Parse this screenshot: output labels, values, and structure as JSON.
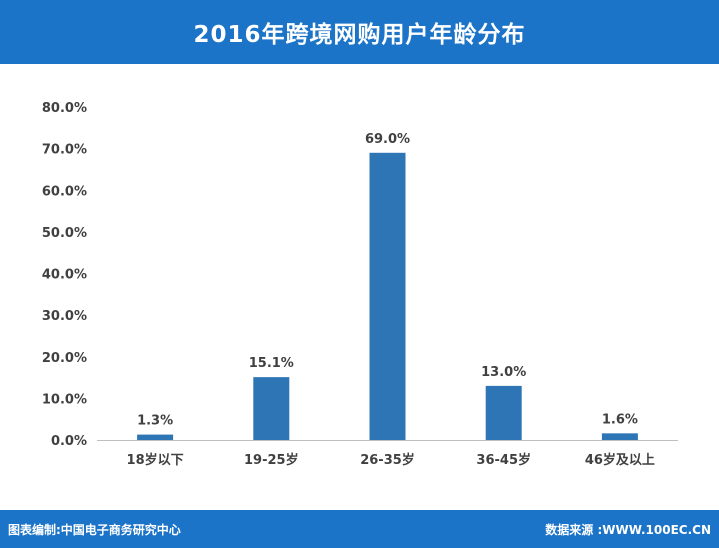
{
  "header": {
    "title": "2016年跨境网购用户年龄分布"
  },
  "footer": {
    "credit": "图表编制:中国电子商务研究中心",
    "source": "数据来源 :WWW.100EC.CN"
  },
  "colors": {
    "header_bg": "#1c74c8",
    "bar": "#2e75b6",
    "axis_text": "#404040"
  },
  "chart_data": {
    "type": "bar",
    "title": "2016年跨境网购用户年龄分布",
    "categories": [
      "18岁以下",
      "19-25岁",
      "26-35岁",
      "36-45岁",
      "46岁及以上"
    ],
    "values": [
      1.3,
      15.1,
      69.0,
      13.0,
      1.6
    ],
    "data_labels": [
      "1.3%",
      "15.1%",
      "69.0%",
      "13.0%",
      "1.6%"
    ],
    "ylim": [
      0,
      80
    ],
    "yticks": [
      0,
      10,
      20,
      30,
      40,
      50,
      60,
      70,
      80
    ],
    "ytick_labels": [
      "0.0%",
      "10.0%",
      "20.0%",
      "30.0%",
      "40.0%",
      "50.0%",
      "60.0%",
      "70.0%",
      "80.0%"
    ],
    "xlabel": "",
    "ylabel": "",
    "grid": false,
    "legend": "none"
  }
}
